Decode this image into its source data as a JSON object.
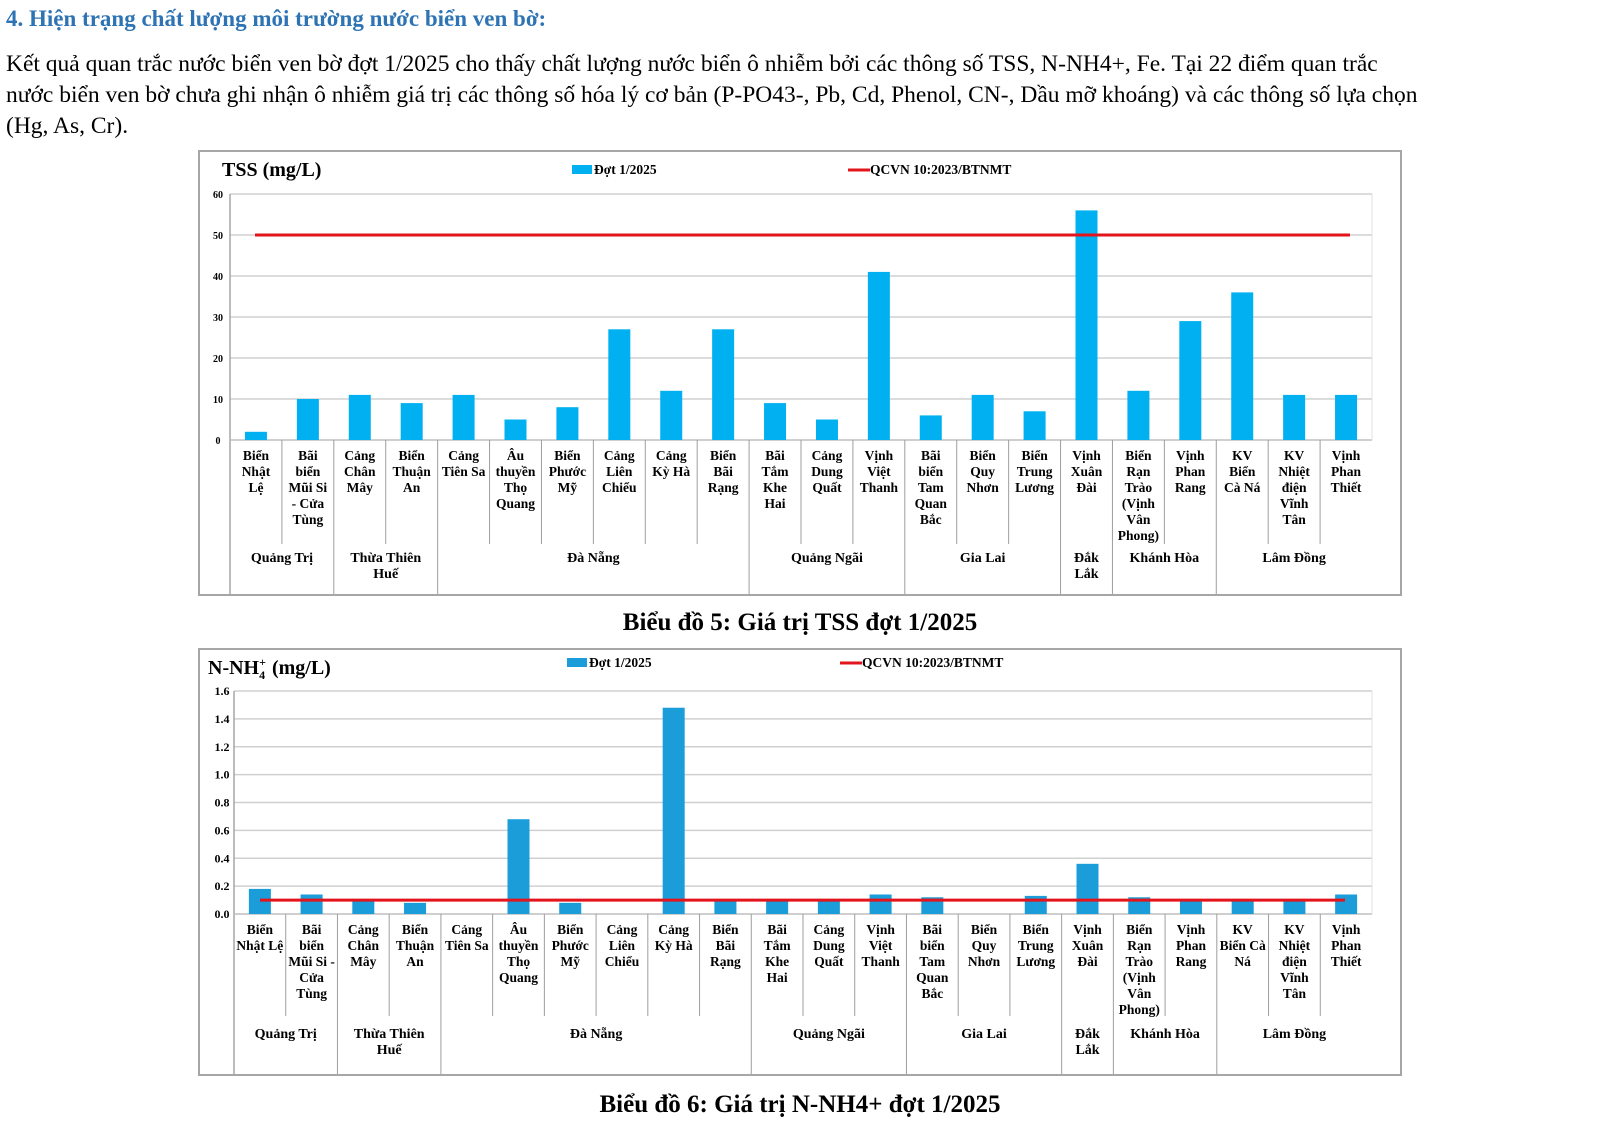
{
  "section": {
    "heading": "4.  Hiện trạng chất lượng môi trường nước biển ven bờ:",
    "paragraph_lines": [
      "Kết quả quan trắc nước biển ven bờ đợt 1/2025 cho thấy chất lượng nước biển ô nhiễm bởi các thông số TSS, N-NH4+, Fe. Tại 22 điểm quan trắc",
      "nước biển ven bờ chưa ghi nhận ô nhiễm giá trị các thông số hóa lý cơ bản (P-PO43-, Pb, Cd, Phenol, CN-, Dầu mỡ khoáng) và các thông số lựa chọn",
      "(Hg, As, Cr)."
    ]
  },
  "colors": {
    "heading": "#2e74b5",
    "bar_tss": "#00b0f0",
    "bar_nh4": "#1a9dd9",
    "limit_line": "#e3141b",
    "grid": "#d0d0d0",
    "border": "#a6a6a6"
  },
  "chart_data": [
    {
      "type": "bar",
      "title": "TSS (mg/L)",
      "caption": "Biểu đồ 5: Giá trị TSS đợt 1/2025",
      "xlabel": "",
      "ylabel": "TSS (mg/L)",
      "ylim": [
        0,
        60
      ],
      "yticks": [
        "0",
        "10",
        "20",
        "30",
        "40",
        "50",
        "60"
      ],
      "grid": true,
      "legend_position": "top",
      "categories": [
        [
          "Biển",
          "Nhật",
          "Lệ"
        ],
        [
          "Bãi",
          "biển",
          "Mũi Si",
          "- Cửa",
          "Tùng"
        ],
        [
          "Cảng",
          "Chân",
          "Mây"
        ],
        [
          "Biển",
          "Thuận",
          "An"
        ],
        [
          "Cảng",
          "Tiên Sa"
        ],
        [
          "Âu",
          "thuyền",
          "Thọ",
          "Quang"
        ],
        [
          "Biển",
          "Phước",
          "Mỹ"
        ],
        [
          "Cảng",
          "Liên",
          "Chiểu"
        ],
        [
          "Cảng",
          "Kỳ Hà"
        ],
        [
          "Biển",
          "Bãi",
          "Rạng"
        ],
        [
          "Bãi",
          "Tắm",
          "Khe",
          "Hai"
        ],
        [
          "Cảng",
          "Dung",
          "Quất"
        ],
        [
          "Vịnh",
          "Việt",
          "Thanh"
        ],
        [
          "Bãi",
          "biển",
          "Tam",
          "Quan",
          "Bắc"
        ],
        [
          "Biển",
          "Quy",
          "Nhơn"
        ],
        [
          "Biển",
          "Trung",
          "Lương"
        ],
        [
          "Vịnh",
          "Xuân",
          "Đài"
        ],
        [
          "Biển",
          "Rạn",
          "Trào",
          "(Vịnh",
          "Vân",
          "Phong)"
        ],
        [
          "Vịnh",
          "Phan",
          "Rang"
        ],
        [
          "KV",
          "Biển",
          "Cà Ná"
        ],
        [
          "KV",
          "Nhiệt",
          "điện",
          "Vĩnh",
          "Tân"
        ],
        [
          "Vịnh",
          "Phan",
          "Thiết"
        ]
      ],
      "groups": [
        {
          "name": [
            "Quảng Trị"
          ],
          "count": 2
        },
        {
          "name": [
            "Thừa Thiên",
            "Huế"
          ],
          "count": 2
        },
        {
          "name": [
            "Đà Nẵng"
          ],
          "count": 6
        },
        {
          "name": [
            "Quảng Ngãi"
          ],
          "count": 3
        },
        {
          "name": [
            "Gia Lai"
          ],
          "count": 3
        },
        {
          "name": [
            "Đắk",
            "Lắk"
          ],
          "count": 1
        },
        {
          "name": [
            "Khánh Hòa"
          ],
          "count": 2
        },
        {
          "name": [
            "Lâm Đồng"
          ],
          "count": 3
        }
      ],
      "series": [
        {
          "name": "Đợt 1/2025",
          "kind": "bar",
          "values": [
            2,
            10,
            11,
            9,
            11,
            5,
            8,
            27,
            12,
            27,
            9,
            5,
            41,
            6,
            11,
            7,
            56,
            12,
            29,
            36,
            11,
            11
          ]
        },
        {
          "name": "QCVN 10:2023/BTNMT",
          "kind": "line",
          "values": [
            50,
            50,
            50,
            50,
            50,
            50,
            50,
            50,
            50,
            50,
            50,
            50,
            50,
            50,
            50,
            50,
            50,
            50,
            50,
            50,
            50,
            50
          ]
        }
      ]
    },
    {
      "type": "bar",
      "title": "N-NH4+ (mg/L)",
      "title_parts": {
        "main": "N-NH",
        "sub": "4",
        "sup": "+",
        "unit": " (mg/L)"
      },
      "caption": "Biểu đồ 6: Giá trị N-NH4+ đợt 1/2025",
      "xlabel": "",
      "ylabel": "N-NH4+ (mg/L)",
      "ylim": [
        0,
        1.6
      ],
      "yticks": [
        "0.0",
        "0.2",
        "0.4",
        "0.6",
        "0.8",
        "1.0",
        "1.2",
        "1.4",
        "1.6"
      ],
      "grid": true,
      "legend_position": "top",
      "categories": [
        [
          "Biển",
          "Nhật Lệ"
        ],
        [
          "Bãi",
          "biển",
          "Mũi Si -",
          "Cửa",
          "Tùng"
        ],
        [
          "Cảng",
          "Chân",
          "Mây"
        ],
        [
          "Biển",
          "Thuận",
          "An"
        ],
        [
          "Cảng",
          "Tiên Sa"
        ],
        [
          "Âu",
          "thuyền",
          "Thọ",
          "Quang"
        ],
        [
          "Biển",
          "Phước",
          "Mỹ"
        ],
        [
          "Cảng",
          "Liên",
          "Chiểu"
        ],
        [
          "Cảng",
          "Kỳ Hà"
        ],
        [
          "Biển",
          "Bãi",
          "Rạng"
        ],
        [
          "Bãi",
          "Tắm",
          "Khe",
          "Hai"
        ],
        [
          "Cảng",
          "Dung",
          "Quất"
        ],
        [
          "Vịnh",
          "Việt",
          "Thanh"
        ],
        [
          "Bãi",
          "biển",
          "Tam",
          "Quan",
          "Bắc"
        ],
        [
          "Biển",
          "Quy",
          "Nhơn"
        ],
        [
          "Biển",
          "Trung",
          "Lương"
        ],
        [
          "Vịnh",
          "Xuân",
          "Đài"
        ],
        [
          "Biển",
          "Rạn",
          "Trào",
          "(Vịnh",
          "Vân",
          "Phong)"
        ],
        [
          "Vịnh",
          "Phan",
          "Rang"
        ],
        [
          "KV",
          "Biển Cà",
          "Ná"
        ],
        [
          "KV",
          "Nhiệt",
          "điện",
          "Vĩnh",
          "Tân"
        ],
        [
          "Vịnh",
          "Phan",
          "Thiết"
        ]
      ],
      "groups": [
        {
          "name": [
            "Quảng Trị"
          ],
          "count": 2
        },
        {
          "name": [
            "Thừa Thiên",
            "Huế"
          ],
          "count": 2
        },
        {
          "name": [
            "Đà Nẵng"
          ],
          "count": 6
        },
        {
          "name": [
            "Quảng Ngãi"
          ],
          "count": 3
        },
        {
          "name": [
            "Gia Lai"
          ],
          "count": 3
        },
        {
          "name": [
            "Đắk",
            "Lắk"
          ],
          "count": 1
        },
        {
          "name": [
            "Khánh Hòa"
          ],
          "count": 2
        },
        {
          "name": [
            "Lâm Đồng"
          ],
          "count": 3
        }
      ],
      "series": [
        {
          "name": "Đợt 1/2025",
          "kind": "bar",
          "values": [
            0.18,
            0.14,
            0.1,
            0.08,
            0,
            0.68,
            0.08,
            0,
            1.48,
            0.1,
            0.1,
            0.1,
            0.14,
            0.12,
            0,
            0.13,
            0.36,
            0.12,
            0.1,
            0.1,
            0.1,
            0.14
          ]
        },
        {
          "name": "QCVN 10:2023/BTNMT",
          "kind": "line",
          "values": [
            0.1,
            0.1,
            0.1,
            0.1,
            0.1,
            0.1,
            0.1,
            0.1,
            0.1,
            0.1,
            0.1,
            0.1,
            0.1,
            0.1,
            0.1,
            0.1,
            0.1,
            0.1,
            0.1,
            0.1,
            0.1,
            0.1
          ]
        }
      ]
    }
  ]
}
